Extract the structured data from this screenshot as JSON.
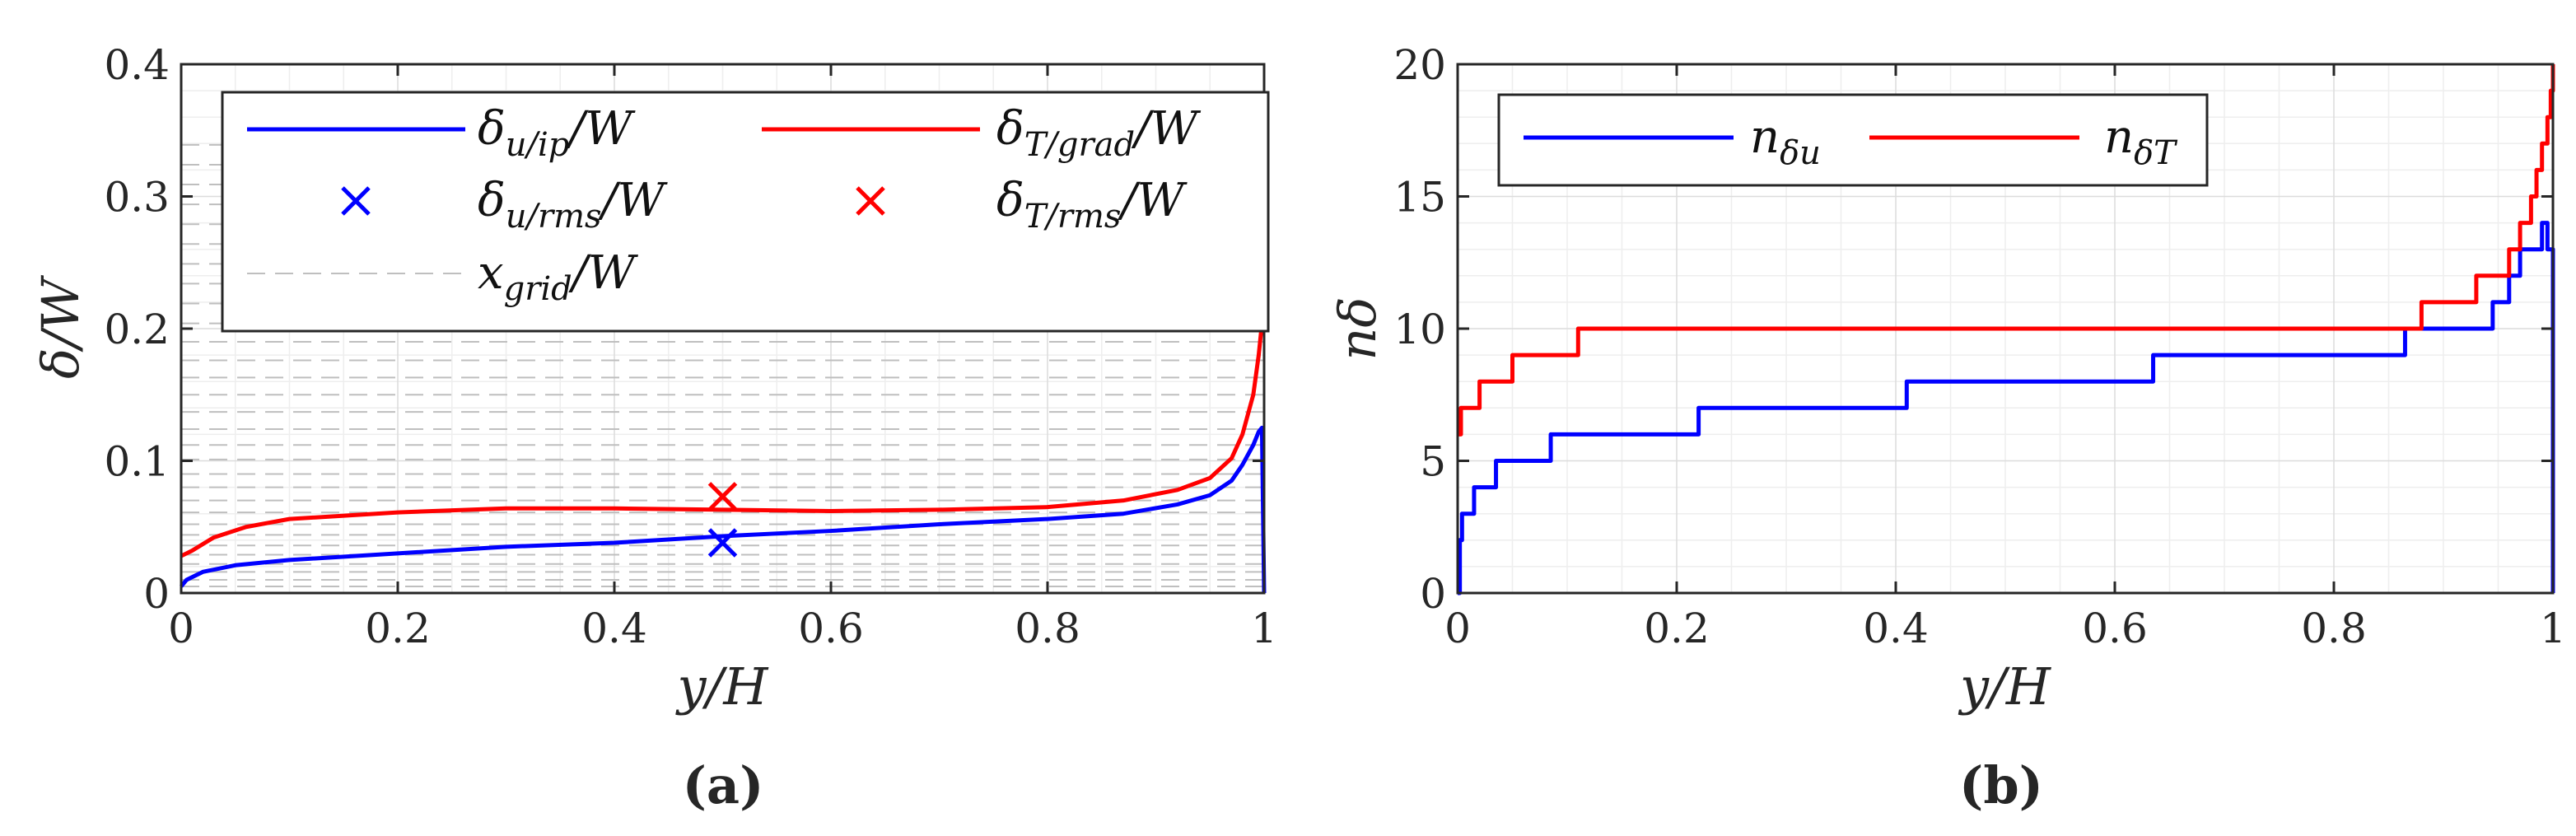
{
  "figure_labels": {
    "a": "(a)",
    "b": "(b)"
  },
  "chart_data": [
    {
      "panel": "a",
      "type": "line",
      "xlabel": "y/H",
      "ylabel": "δ/W",
      "xlim": [
        0,
        1
      ],
      "ylim": [
        0,
        0.4
      ],
      "xticks": [
        0,
        0.2,
        0.4,
        0.6,
        0.8,
        1
      ],
      "yticks": [
        0,
        0.1,
        0.2,
        0.3,
        0.4
      ],
      "xtick_labels": [
        "0",
        "0.2",
        "0.4",
        "0.6",
        "0.8",
        "1"
      ],
      "ytick_labels": [
        "0",
        "0.1",
        "0.2",
        "0.3",
        "0.4"
      ],
      "grid": true,
      "legend_position": "top-right",
      "series": [
        {
          "name": "δ_u/ip/W",
          "color": "#0000ff",
          "x": [
            0,
            0.005,
            0.02,
            0.05,
            0.1,
            0.2,
            0.3,
            0.4,
            0.5,
            0.6,
            0.7,
            0.8,
            0.87,
            0.92,
            0.95,
            0.97,
            0.98,
            0.99,
            0.995,
            0.998,
            1.0
          ],
          "y": [
            0.005,
            0.01,
            0.016,
            0.021,
            0.025,
            0.03,
            0.035,
            0.038,
            0.043,
            0.047,
            0.052,
            0.056,
            0.06,
            0.067,
            0.074,
            0.085,
            0.097,
            0.112,
            0.122,
            0.125,
            0.0
          ]
        },
        {
          "name": "δ_T/grad/W",
          "color": "#ff0000",
          "x": [
            0,
            0.01,
            0.03,
            0.06,
            0.1,
            0.2,
            0.3,
            0.4,
            0.5,
            0.6,
            0.7,
            0.8,
            0.87,
            0.92,
            0.95,
            0.97,
            0.98,
            0.99,
            0.995,
            1.0
          ],
          "y": [
            0.028,
            0.032,
            0.042,
            0.05,
            0.056,
            0.061,
            0.064,
            0.064,
            0.063,
            0.062,
            0.063,
            0.065,
            0.07,
            0.078,
            0.087,
            0.102,
            0.12,
            0.15,
            0.18,
            0.22
          ]
        }
      ],
      "markers": [
        {
          "name": "δ_u/rms/W",
          "color": "#0000ff",
          "x": 0.5,
          "y": 0.038
        },
        {
          "name": "δ_T/rms/W",
          "color": "#ff0000",
          "x": 0.5,
          "y": 0.073
        }
      ],
      "grid_lines": {
        "name": "x_grid/W",
        "color": "#bfbfbf",
        "y": [
          0.005,
          0.01,
          0.016,
          0.022,
          0.029,
          0.036,
          0.044,
          0.052,
          0.061,
          0.07,
          0.08,
          0.09,
          0.101,
          0.112,
          0.124,
          0.137,
          0.15,
          0.163,
          0.176,
          0.19,
          0.204,
          0.219,
          0.234,
          0.249,
          0.264,
          0.279,
          0.294,
          0.309,
          0.324,
          0.339
        ]
      },
      "legend": [
        {
          "label": "δu/ip/W",
          "main": "δ",
          "sub": "u/ip",
          "rest": "/W",
          "kind": "line",
          "color": "#0000ff"
        },
        {
          "label": "δT/grad/W",
          "main": "δ",
          "sub": "T/grad",
          "rest": "/W",
          "kind": "line",
          "color": "#ff0000"
        },
        {
          "label": "δu/rms/W",
          "main": "δ",
          "sub": "u/rms",
          "rest": "/W",
          "kind": "marker",
          "color": "#0000ff"
        },
        {
          "label": "δT/rms/W",
          "main": "δ",
          "sub": "T/rms",
          "rest": "/W",
          "kind": "marker",
          "color": "#ff0000"
        },
        {
          "label": "xgrid/W",
          "main": "x",
          "sub": "grid",
          "rest": "/W",
          "kind": "dash",
          "color": "#bfbfbf"
        }
      ]
    },
    {
      "panel": "b",
      "type": "line",
      "xlabel": "y/H",
      "ylabel": "nδ",
      "xlim": [
        0,
        1
      ],
      "ylim": [
        0,
        20
      ],
      "xticks": [
        0,
        0.2,
        0.4,
        0.6,
        0.8,
        1
      ],
      "yticks": [
        0,
        5,
        10,
        15,
        20
      ],
      "xtick_labels": [
        "0",
        "0.2",
        "0.4",
        "0.6",
        "0.8",
        "1"
      ],
      "ytick_labels": [
        "0",
        "5",
        "10",
        "15",
        "20"
      ],
      "grid": true,
      "legend_position": "top-left",
      "series": [
        {
          "name": "n_δu",
          "color": "#0000ff",
          "step": true,
          "x": [
            0,
            0.002,
            0.004,
            0.006,
            0.015,
            0.035,
            0.085,
            0.22,
            0.41,
            0.635,
            0.865,
            0.945,
            0.96,
            0.97,
            0.98,
            0.99,
            0.995,
            1.0
          ],
          "y": [
            0,
            2,
            3,
            3,
            4,
            5,
            6,
            7,
            8,
            9,
            10,
            11,
            12,
            13,
            13,
            14,
            13,
            0
          ]
        },
        {
          "name": "n_δT",
          "color": "#ff0000",
          "step": true,
          "x": [
            0,
            0.003,
            0.008,
            0.02,
            0.05,
            0.11,
            0.88,
            0.93,
            0.96,
            0.97,
            0.98,
            0.985,
            0.99,
            0.995,
            0.998,
            1.0
          ],
          "y": [
            6,
            7,
            7,
            8,
            9,
            10,
            11,
            12,
            13,
            14,
            15,
            16,
            17,
            18,
            19,
            20
          ]
        }
      ],
      "legend": [
        {
          "label": "nδu",
          "main": "n",
          "sub": "δu",
          "rest": "",
          "kind": "line",
          "color": "#0000ff"
        },
        {
          "label": "nδT",
          "main": "n",
          "sub": "δT",
          "rest": "",
          "kind": "line",
          "color": "#ff0000"
        }
      ]
    }
  ]
}
